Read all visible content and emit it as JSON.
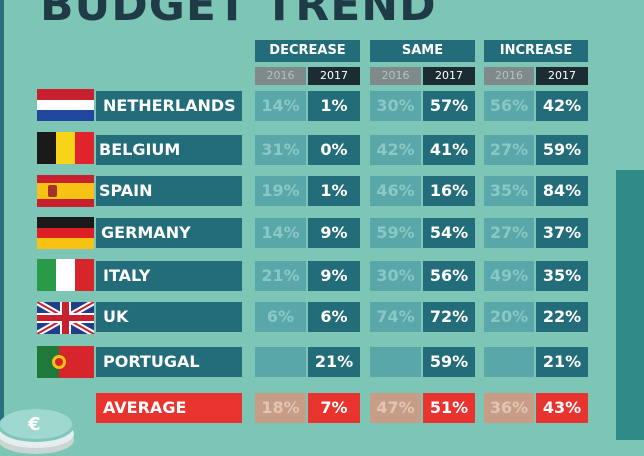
{
  "title": "BUDGET TREND",
  "groups": [
    "DECREASE",
    "SAME",
    "INCREASE"
  ],
  "years": [
    "2016",
    "2017"
  ],
  "countries": [
    {
      "name": "NETHERLANDS",
      "flag": "netherlands-flag-icon",
      "values": [
        "14%",
        "1%",
        "30%",
        "57%",
        "56%",
        "42%"
      ]
    },
    {
      "name": "BELGIUM",
      "flag": "belgium-flag-icon",
      "values": [
        "31%",
        "0%",
        "42%",
        "41%",
        "27%",
        "59%"
      ]
    },
    {
      "name": "SPAIN",
      "flag": "spain-flag-icon",
      "values": [
        "19%",
        "1%",
        "46%",
        "16%",
        "35%",
        "84%"
      ]
    },
    {
      "name": "GERMANY",
      "flag": "germany-flag-icon",
      "values": [
        "14%",
        "9%",
        "59%",
        "54%",
        "27%",
        "37%"
      ]
    },
    {
      "name": "ITALY",
      "flag": "italy-flag-icon",
      "values": [
        "21%",
        "9%",
        "30%",
        "56%",
        "49%",
        "35%"
      ]
    },
    {
      "name": "UK",
      "flag": "uk-flag-icon",
      "values": [
        "6%",
        "6%",
        "74%",
        "72%",
        "20%",
        "22%"
      ]
    },
    {
      "name": "PORTUGAL",
      "flag": "portugal-flag-icon",
      "values": [
        "",
        "21%",
        "",
        "59%",
        "",
        "21%"
      ]
    }
  ],
  "average": {
    "name": "AVERAGE",
    "values": [
      "18%",
      "7%",
      "47%",
      "51%",
      "36%",
      "43%"
    ]
  },
  "colors": {
    "background": "#7dc6b5",
    "header": "#236c7a",
    "accent": "#e8332e",
    "dark": "#1b2d33"
  },
  "chart_data": {
    "type": "table",
    "title": "BUDGET TREND",
    "columns": [
      "DECREASE 2016",
      "DECREASE 2017",
      "SAME 2016",
      "SAME 2017",
      "INCREASE 2016",
      "INCREASE 2017"
    ],
    "rows": [
      {
        "label": "NETHERLANDS",
        "values": [
          14,
          1,
          30,
          57,
          56,
          42
        ]
      },
      {
        "label": "BELGIUM",
        "values": [
          31,
          0,
          42,
          41,
          27,
          59
        ]
      },
      {
        "label": "SPAIN",
        "values": [
          19,
          1,
          46,
          16,
          35,
          84
        ]
      },
      {
        "label": "GERMANY",
        "values": [
          14,
          9,
          59,
          54,
          27,
          37
        ]
      },
      {
        "label": "ITALY",
        "values": [
          21,
          9,
          30,
          56,
          49,
          35
        ]
      },
      {
        "label": "UK",
        "values": [
          6,
          6,
          74,
          72,
          20,
          22
        ]
      },
      {
        "label": "PORTUGAL",
        "values": [
          null,
          21,
          null,
          59,
          null,
          21
        ]
      },
      {
        "label": "AVERAGE",
        "values": [
          18,
          7,
          47,
          51,
          36,
          43
        ]
      }
    ],
    "unit": "%"
  }
}
